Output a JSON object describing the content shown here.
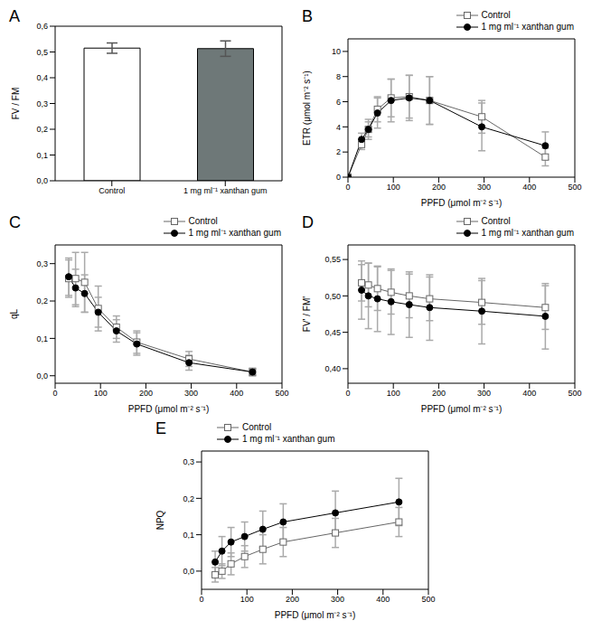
{
  "chart_data": [
    {
      "type": "bar",
      "title": "A",
      "ylabel": "FV / FM",
      "categories": [
        "Control",
        "1 mg ml⁻¹ xanthan gum"
      ],
      "values": [
        0.515,
        0.513
      ],
      "errors": [
        0.02,
        0.03
      ],
      "colors": [
        "#ffffff",
        "#6e7878"
      ],
      "ylim": [
        0,
        0.6
      ],
      "yticks": [
        {
          "value": 0,
          "label": "0,0"
        },
        {
          "value": 0.1,
          "label": "0,1"
        },
        {
          "value": 0.2,
          "label": "0,2"
        },
        {
          "value": 0.3,
          "label": "0,3"
        },
        {
          "value": 0.4,
          "label": "0,4"
        },
        {
          "value": 0.5,
          "label": "0,5"
        },
        {
          "value": 0.6,
          "label": "0,6"
        }
      ]
    },
    {
      "type": "line",
      "title": "B",
      "xlabel": "PPFD (μmol m⁻² s⁻¹)",
      "ylabel": "ETR (μmol m⁻² s⁻¹)",
      "legend": "upper right",
      "x": [
        0,
        30,
        45,
        65,
        95,
        135,
        180,
        295,
        435
      ],
      "xlim": [
        0,
        500
      ],
      "xticks": [
        0,
        100,
        200,
        300,
        400,
        500
      ],
      "ylim": [
        0,
        11
      ],
      "yticks": [
        0,
        2,
        4,
        6,
        8,
        10
      ],
      "series": [
        {
          "name": "Control",
          "color": "#666666",
          "marker": "open_square",
          "values": [
            0,
            2.6,
            3.8,
            5.4,
            6.3,
            6.4,
            6.1,
            4.8,
            1.6
          ],
          "errors": [
            0,
            0.4,
            0.6,
            1.0,
            1.5,
            1.7,
            1.9,
            1.3,
            0.7
          ]
        },
        {
          "name": "1 mg ml⁻¹ xanthan gum",
          "color": "#000000",
          "marker": "circle",
          "values": [
            0,
            3.0,
            3.8,
            5.1,
            6.1,
            6.3,
            6.1,
            4.0,
            2.5
          ],
          "errors": [
            0,
            0.5,
            0.8,
            1.2,
            1.7,
            1.8,
            1.9,
            1.9,
            1.1
          ]
        }
      ]
    },
    {
      "type": "line",
      "title": "C",
      "xlabel": "PPFD (μmol m⁻² s⁻¹)",
      "ylabel": "qL",
      "legend": "upper right",
      "x": [
        30,
        45,
        65,
        95,
        135,
        180,
        295,
        435
      ],
      "xlim": [
        0,
        500
      ],
      "xticks": [
        0,
        100,
        200,
        300,
        400,
        500
      ],
      "ylim": [
        -0.02,
        0.35
      ],
      "yticks": [
        {
          "value": 0,
          "label": "0,0"
        },
        {
          "value": 0.1,
          "label": "0,1"
        },
        {
          "value": 0.2,
          "label": "0,2"
        },
        {
          "value": 0.3,
          "label": "0,3"
        }
      ],
      "series": [
        {
          "name": "Control",
          "color": "#666666",
          "marker": "open_square",
          "values": [
            0.26,
            0.26,
            0.25,
            0.18,
            0.13,
            0.09,
            0.045,
            0.01
          ],
          "errors": [
            0.05,
            0.07,
            0.08,
            0.06,
            0.03,
            0.03,
            0.02,
            0.01
          ]
        },
        {
          "name": "1 mg ml⁻¹ xanthan gum",
          "color": "#000000",
          "marker": "circle",
          "values": [
            0.265,
            0.235,
            0.22,
            0.17,
            0.12,
            0.085,
            0.035,
            0.01
          ],
          "errors": [
            0.05,
            0.05,
            0.05,
            0.04,
            0.03,
            0.03,
            0.02,
            0.01
          ]
        }
      ]
    },
    {
      "type": "line",
      "title": "D",
      "xlabel": "PPFD (μmol m⁻² s⁻¹)",
      "ylabel": "FV' / FM'",
      "legend": "upper right",
      "x": [
        30,
        45,
        65,
        95,
        135,
        180,
        295,
        435
      ],
      "xlim": [
        0,
        500
      ],
      "xticks": [
        0,
        100,
        200,
        300,
        400,
        500
      ],
      "ylim": [
        0.38,
        0.57
      ],
      "yticks": [
        {
          "value": 0.4,
          "label": "0,40"
        },
        {
          "value": 0.45,
          "label": "0,45"
        },
        {
          "value": 0.5,
          "label": "0,50"
        },
        {
          "value": 0.55,
          "label": "0,55"
        }
      ],
      "series": [
        {
          "name": "Control",
          "color": "#666666",
          "marker": "open_square",
          "values": [
            0.518,
            0.515,
            0.51,
            0.505,
            0.5,
            0.496,
            0.491,
            0.484
          ],
          "errors": [
            0.025,
            0.03,
            0.03,
            0.03,
            0.03,
            0.03,
            0.03,
            0.03
          ]
        },
        {
          "name": "1 mg ml⁻¹ xanthan gum",
          "color": "#000000",
          "marker": "circle",
          "values": [
            0.508,
            0.5,
            0.496,
            0.492,
            0.488,
            0.484,
            0.479,
            0.472
          ],
          "errors": [
            0.04,
            0.045,
            0.045,
            0.045,
            0.045,
            0.045,
            0.045,
            0.045
          ]
        }
      ]
    },
    {
      "type": "line",
      "title": "E",
      "xlabel": "PPFD (μmol m⁻² s⁻¹)",
      "ylabel": "NPQ",
      "legend": "upper left",
      "x": [
        30,
        45,
        65,
        95,
        135,
        180,
        295,
        435
      ],
      "xlim": [
        0,
        500
      ],
      "xticks": [
        0,
        100,
        200,
        300,
        400,
        500
      ],
      "ylim": [
        -0.05,
        0.33
      ],
      "yticks": [
        {
          "value": 0,
          "label": "0,0"
        },
        {
          "value": 0.1,
          "label": "0,1"
        },
        {
          "value": 0.2,
          "label": "0,2"
        },
        {
          "value": 0.3,
          "label": "0,3"
        }
      ],
      "series": [
        {
          "name": "Control",
          "color": "#666666",
          "marker": "open_square",
          "values": [
            -0.01,
            0.0,
            0.02,
            0.04,
            0.06,
            0.08,
            0.105,
            0.135
          ],
          "errors": [
            0.02,
            0.02,
            0.03,
            0.03,
            0.04,
            0.04,
            0.04,
            0.04
          ]
        },
        {
          "name": "1 mg ml⁻¹ xanthan gum",
          "color": "#000000",
          "marker": "circle",
          "values": [
            0.025,
            0.055,
            0.08,
            0.095,
            0.115,
            0.135,
            0.16,
            0.19
          ],
          "errors": [
            0.03,
            0.04,
            0.04,
            0.04,
            0.05,
            0.05,
            0.06,
            0.065
          ]
        }
      ]
    }
  ]
}
